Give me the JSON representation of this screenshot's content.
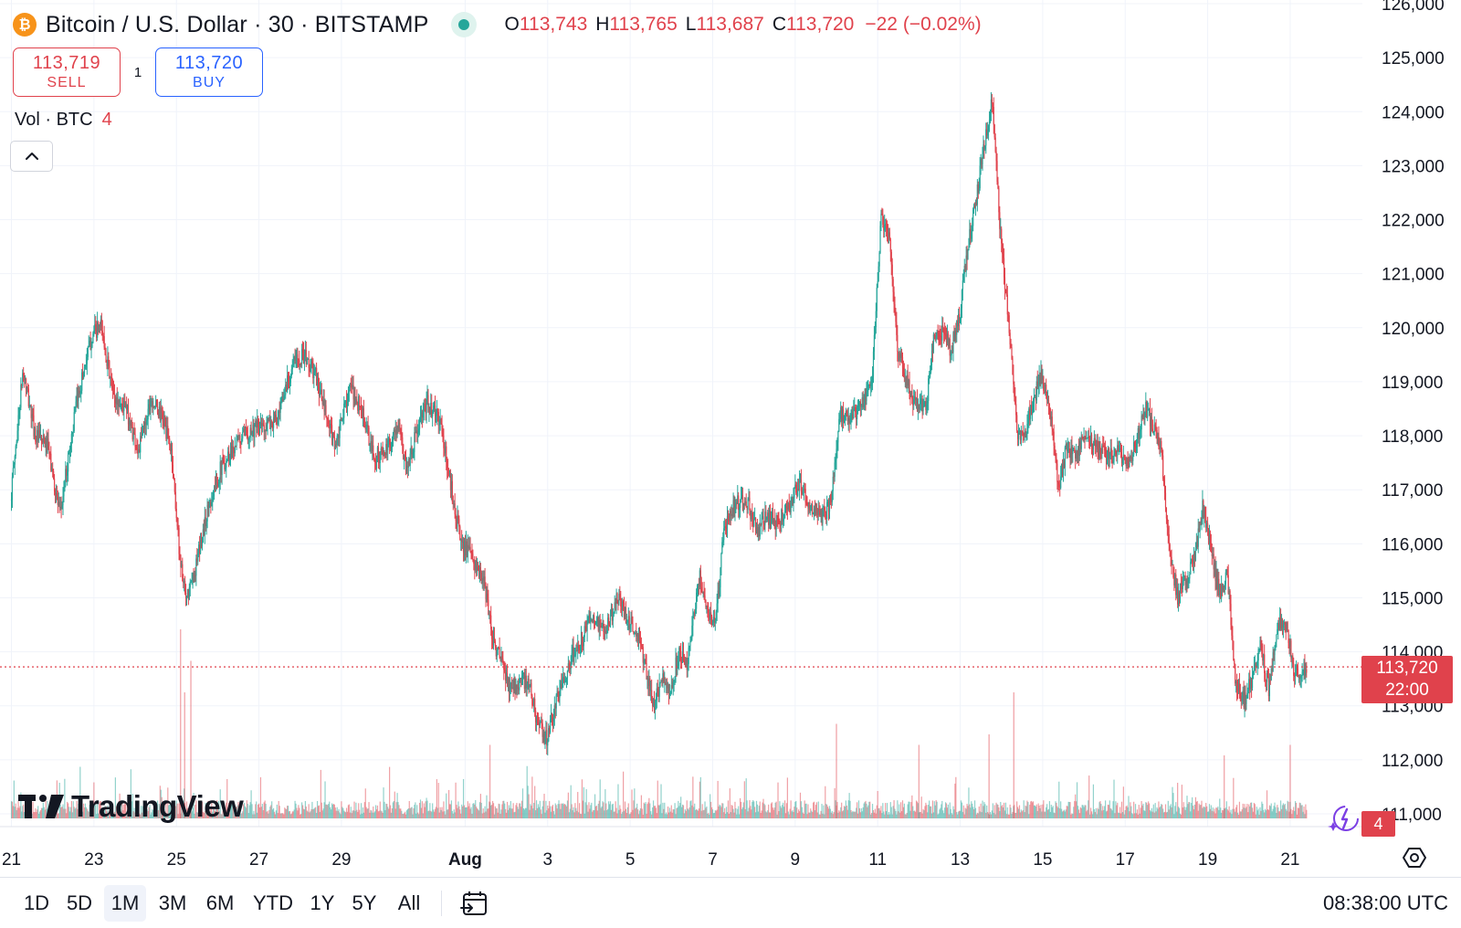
{
  "header": {
    "coin_glyph": "₿",
    "symbol": "Bitcoin / U.S. Dollar · 30 · BITSTAMP",
    "ohlc": {
      "o_key": "O",
      "o": "113,743",
      "h_key": "H",
      "h": "113,765",
      "l_key": "L",
      "l": "113,687",
      "c_key": "C",
      "c": "113,720",
      "change": "−22 (−0.02%)"
    }
  },
  "trade": {
    "sell_price": "113,719",
    "sell_label": "SELL",
    "spread": "1",
    "buy_price": "113,720",
    "buy_label": "BUY"
  },
  "volume_legend": {
    "label": "Vol · BTC",
    "value": "4"
  },
  "watermark": {
    "text": "TradingView"
  },
  "last_price": {
    "price": "113,720",
    "countdown": "22:00",
    "volume": "4"
  },
  "colors": {
    "up": "#26a69a",
    "down": "#e0424c",
    "grid": "#f0f3fa",
    "axis_text": "#131722",
    "buy": "#2962ff"
  },
  "range_buttons": [
    {
      "label": "1D",
      "active": false
    },
    {
      "label": "5D",
      "active": false
    },
    {
      "label": "1M",
      "active": true
    },
    {
      "label": "3M",
      "active": false
    },
    {
      "label": "6M",
      "active": false
    },
    {
      "label": "YTD",
      "active": false
    },
    {
      "label": "1Y",
      "active": false
    },
    {
      "label": "5Y",
      "active": false
    },
    {
      "label": "All",
      "active": false
    }
  ],
  "clock": "08:38:00 UTC",
  "icons": {
    "collapse": "chevron-up-icon",
    "date_range": "calendar-goto-icon",
    "settings": "chart-settings-icon",
    "spark": "sparkle-icon"
  },
  "chart_data": {
    "type": "candlestick",
    "symbol": "BTCUSD",
    "exchange": "BITSTAMP",
    "interval": "30",
    "y_ticks": [
      111000,
      112000,
      113000,
      114000,
      115000,
      116000,
      117000,
      118000,
      119000,
      120000,
      121000,
      122000,
      123000,
      124000,
      125000,
      126000
    ],
    "y_tick_labels": [
      "111,000",
      "112,000",
      "113,000",
      "114,000",
      "115,000",
      "116,000",
      "117,000",
      "118,000",
      "119,000",
      "120,000",
      "121,000",
      "122,000",
      "123,000",
      "124,000",
      "125,000",
      "126,000"
    ],
    "ylim": [
      110500,
      126000
    ],
    "x_tick_labels": [
      {
        "label": "21",
        "day": 21
      },
      {
        "label": "23",
        "day": 23
      },
      {
        "label": "25",
        "day": 25
      },
      {
        "label": "27",
        "day": 27
      },
      {
        "label": "29",
        "day": 29
      },
      {
        "label": "Aug",
        "day": 32,
        "bold": true
      },
      {
        "label": "3",
        "day": 34
      },
      {
        "label": "5",
        "day": 36
      },
      {
        "label": "7",
        "day": 38
      },
      {
        "label": "9",
        "day": 40
      },
      {
        "label": "11",
        "day": 42
      },
      {
        "label": "13",
        "day": 44
      },
      {
        "label": "15",
        "day": 46
      },
      {
        "label": "17",
        "day": 48
      },
      {
        "label": "19",
        "day": 50
      },
      {
        "label": "21",
        "day": 52
      }
    ],
    "xlim": [
      20.9,
      53.75
    ],
    "price_path": [
      [
        21.0,
        116800
      ],
      [
        21.3,
        119200
      ],
      [
        21.6,
        118000
      ],
      [
        21.9,
        117800
      ],
      [
        22.2,
        116500
      ],
      [
        22.4,
        117600
      ],
      [
        22.6,
        118600
      ],
      [
        22.8,
        119300
      ],
      [
        23.0,
        119900
      ],
      [
        23.2,
        120000
      ],
      [
        23.5,
        118700
      ],
      [
        23.8,
        118500
      ],
      [
        24.1,
        117700
      ],
      [
        24.4,
        118700
      ],
      [
        24.7,
        118300
      ],
      [
        24.9,
        117700
      ],
      [
        25.1,
        115800
      ],
      [
        25.25,
        114900
      ],
      [
        25.5,
        115600
      ],
      [
        25.8,
        116700
      ],
      [
        26.1,
        117400
      ],
      [
        26.4,
        117800
      ],
      [
        26.8,
        118100
      ],
      [
        27.2,
        118200
      ],
      [
        27.5,
        118300
      ],
      [
        27.7,
        119000
      ],
      [
        27.9,
        119400
      ],
      [
        28.1,
        119500
      ],
      [
        28.4,
        119100
      ],
      [
        28.7,
        118200
      ],
      [
        28.9,
        117800
      ],
      [
        29.2,
        118900
      ],
      [
        29.5,
        118500
      ],
      [
        29.8,
        117600
      ],
      [
        30.1,
        117700
      ],
      [
        30.4,
        118200
      ],
      [
        30.6,
        117400
      ],
      [
        30.9,
        118200
      ],
      [
        31.1,
        118600
      ],
      [
        31.4,
        118300
      ],
      [
        31.6,
        117400
      ],
      [
        31.9,
        116100
      ],
      [
        32.2,
        115700
      ],
      [
        32.5,
        115200
      ],
      [
        32.7,
        114200
      ],
      [
        32.9,
        113800
      ],
      [
        33.1,
        113300
      ],
      [
        33.4,
        113500
      ],
      [
        33.6,
        113300
      ],
      [
        33.8,
        112600
      ],
      [
        34.0,
        112400
      ],
      [
        34.2,
        113000
      ],
      [
        34.4,
        113500
      ],
      [
        34.6,
        113900
      ],
      [
        34.9,
        114300
      ],
      [
        35.1,
        114700
      ],
      [
        35.4,
        114300
      ],
      [
        35.7,
        115000
      ],
      [
        35.9,
        114700
      ],
      [
        36.2,
        114300
      ],
      [
        36.4,
        113700
      ],
      [
        36.6,
        113000
      ],
      [
        36.8,
        113500
      ],
      [
        37.0,
        113300
      ],
      [
        37.2,
        114000
      ],
      [
        37.4,
        113800
      ],
      [
        37.7,
        115400
      ],
      [
        37.9,
        114700
      ],
      [
        38.1,
        114600
      ],
      [
        38.3,
        116300
      ],
      [
        38.6,
        116800
      ],
      [
        38.9,
        116700
      ],
      [
        39.1,
        116200
      ],
      [
        39.3,
        116500
      ],
      [
        39.6,
        116400
      ],
      [
        39.9,
        116700
      ],
      [
        40.1,
        117100
      ],
      [
        40.3,
        116800
      ],
      [
        40.5,
        116600
      ],
      [
        40.7,
        116500
      ],
      [
        40.9,
        116800
      ],
      [
        41.1,
        118400
      ],
      [
        41.4,
        118300
      ],
      [
        41.7,
        118700
      ],
      [
        41.9,
        119200
      ],
      [
        42.1,
        122000
      ],
      [
        42.3,
        121600
      ],
      [
        42.5,
        119600
      ],
      [
        42.8,
        118800
      ],
      [
        43.0,
        118500
      ],
      [
        43.2,
        118600
      ],
      [
        43.4,
        119900
      ],
      [
        43.6,
        119900
      ],
      [
        43.8,
        119600
      ],
      [
        44.0,
        120200
      ],
      [
        44.2,
        121500
      ],
      [
        44.4,
        122300
      ],
      [
        44.6,
        123400
      ],
      [
        44.8,
        124300
      ],
      [
        45.0,
        121700
      ],
      [
        45.2,
        120000
      ],
      [
        45.4,
        118000
      ],
      [
        45.6,
        118100
      ],
      [
        45.8,
        118700
      ],
      [
        46.0,
        119100
      ],
      [
        46.2,
        118500
      ],
      [
        46.4,
        117000
      ],
      [
        46.6,
        117800
      ],
      [
        46.8,
        117600
      ],
      [
        47.0,
        118000
      ],
      [
        47.3,
        117800
      ],
      [
        47.6,
        117600
      ],
      [
        47.9,
        117700
      ],
      [
        48.1,
        117400
      ],
      [
        48.3,
        117900
      ],
      [
        48.5,
        118500
      ],
      [
        48.7,
        118200
      ],
      [
        48.9,
        117700
      ],
      [
        49.1,
        115800
      ],
      [
        49.3,
        115000
      ],
      [
        49.5,
        115400
      ],
      [
        49.7,
        115700
      ],
      [
        49.9,
        116700
      ],
      [
        50.1,
        115900
      ],
      [
        50.3,
        115100
      ],
      [
        50.5,
        115400
      ],
      [
        50.7,
        113400
      ],
      [
        50.9,
        113100
      ],
      [
        51.1,
        113500
      ],
      [
        51.3,
        114100
      ],
      [
        51.5,
        113300
      ],
      [
        51.7,
        114400
      ],
      [
        51.9,
        114600
      ],
      [
        52.1,
        113700
      ],
      [
        52.3,
        113650
      ],
      [
        52.4,
        113720
      ]
    ],
    "volume_spikes": [
      {
        "day": 25.1,
        "height": 0.9
      },
      {
        "day": 25.35,
        "height": 0.75
      },
      {
        "day": 25.2,
        "height": 0.6
      },
      {
        "day": 32.6,
        "height": 0.35
      },
      {
        "day": 41.0,
        "height": 0.45
      },
      {
        "day": 43.0,
        "height": 0.35
      },
      {
        "day": 44.7,
        "height": 0.4
      },
      {
        "day": 45.3,
        "height": 0.6
      },
      {
        "day": 50.4,
        "height": 0.3
      },
      {
        "day": 52.0,
        "height": 0.35
      }
    ],
    "last_price_value": 113720,
    "grid": true
  }
}
